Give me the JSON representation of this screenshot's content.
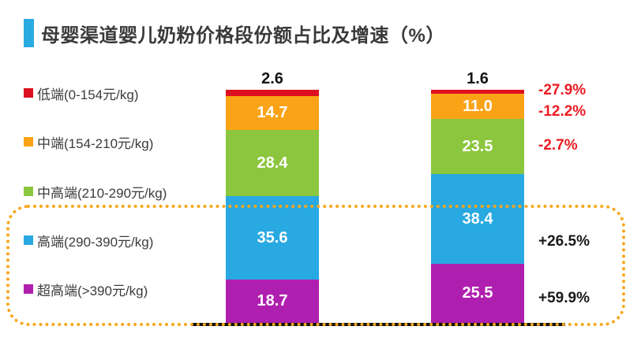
{
  "header": {
    "title": "母婴渠道婴儿奶粉价格段份额占比及增速（%）"
  },
  "colors": {
    "title_accent": "#29ABE2",
    "highlight_border": "#F7A71B",
    "axis": "#101010",
    "negative_growth_text": "#EC1C24",
    "positive_growth_text": "#1a1a1a"
  },
  "chart_data": {
    "type": "bar",
    "stacked": true,
    "unit": "%",
    "title": "母婴渠道婴儿奶粉价格段份额占比及增速（%）",
    "bars": 2,
    "bar_totals": [
      100.0,
      100.0
    ],
    "series": [
      {
        "name": "低端(0-154元/kg)",
        "color": "#DD1021",
        "values": [
          "2.6",
          "1.6"
        ],
        "growth": "-27.9%",
        "growth_color": "#EC1C24",
        "value_label_position": "above"
      },
      {
        "name": "中端(154-210元/kg)",
        "color": "#FBA317",
        "values": [
          "14.7",
          "11.0"
        ],
        "growth": "-12.2%",
        "growth_color": "#EC1C24",
        "value_label_position": "inside"
      },
      {
        "name": "中高端(210-290元/kg)",
        "color": "#8CC63E",
        "values": [
          "28.4",
          "23.5"
        ],
        "growth": "-2.7%",
        "growth_color": "#EC1C24",
        "value_label_position": "inside"
      },
      {
        "name": "高端(290-390元/kg)",
        "color": "#29A9E1",
        "values": [
          "35.6",
          "38.4"
        ],
        "growth": "+26.5%",
        "growth_color": "#1a1a1a",
        "value_label_position": "inside"
      },
      {
        "name": "超高端(>390元/kg)",
        "color": "#AF1FAF",
        "values": [
          "18.7",
          "25.5"
        ],
        "growth": "+59.9%",
        "growth_color": "#1a1a1a",
        "value_label_position": "inside"
      }
    ],
    "highlighted_series": [
      "高端(290-390元/kg)",
      "超高端(>390元/kg)"
    ],
    "legend_position": "left",
    "grid": false
  }
}
